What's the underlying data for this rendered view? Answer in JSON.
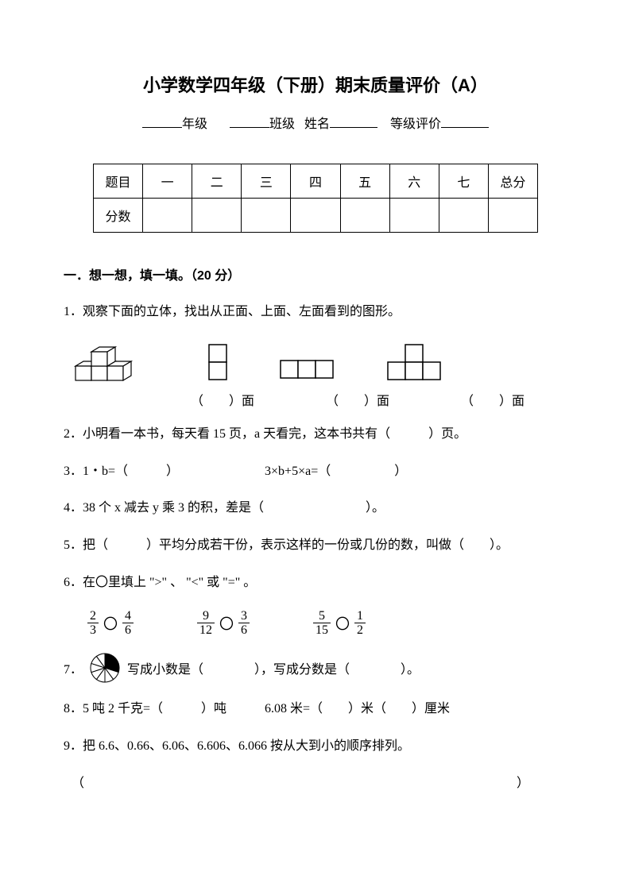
{
  "title": "小学数学四年级（下册）期末质量评价（A）",
  "info": {
    "grade_label": "年级",
    "class_label": "班级",
    "name_label": "姓名",
    "rating_label": "等级评价"
  },
  "score_table": {
    "row1": [
      "题目",
      "一",
      "二",
      "三",
      "四",
      "五",
      "六",
      "七",
      "总分"
    ],
    "row2_label": "分数"
  },
  "section1": {
    "heading": "一．想一想，填一填。（20 分）",
    "q1": "1．观察下面的立体，找出从正面、上面、左面看到的图形。",
    "q1_labels": [
      "（　　）面",
      "（　　）面",
      "（　　）面"
    ],
    "q2": "2．小明看一本书，每天看 15 页，a 天看完，这本书共有（　　　）页。",
    "q3a": "3．1・b=（　　　）",
    "q3b": "3×b+5×a=（　　　　　）",
    "q4": "4．38 个 x 减去 y 乘 3 的积，差是（　　　　　　　　）。",
    "q5": "5．把（　　　）平均分成若干份，表示这样的一份或几份的数，叫做（　　）。",
    "q6": "6．在〇里填上 \">\" 、 \"<\" 或 \"=\" 。",
    "q6_fracs": [
      {
        "n1": "2",
        "d1": "3",
        "n2": "4",
        "d2": "6"
      },
      {
        "n1": "9",
        "d1": "12",
        "n2": "3",
        "d2": "6"
      },
      {
        "n1": "5",
        "d1": "15",
        "n2": "1",
        "d2": "2"
      }
    ],
    "q7_num": "7．",
    "q7_text": "写成小数是（　　　　），写成分数是（　　　　）。",
    "q8": "8．5 吨 2 千克=（　　　）吨　　　6.08 米=（　　）米（　　）厘米",
    "q9": "9．把 6.6、0.66、6.06、6.606、6.066 按从大到小的顺序排列。",
    "q9_blank": "（　　　　　　　　　　　　　　　　　　　　　　　　　　　　　　　　　　）"
  },
  "colors": {
    "text": "#000000",
    "bg": "#ffffff",
    "border": "#000000"
  },
  "shapes": {
    "cube_size": 20,
    "row_size": 22,
    "pie_radius": 18,
    "pie_slices": 10,
    "pie_filled": 3
  }
}
